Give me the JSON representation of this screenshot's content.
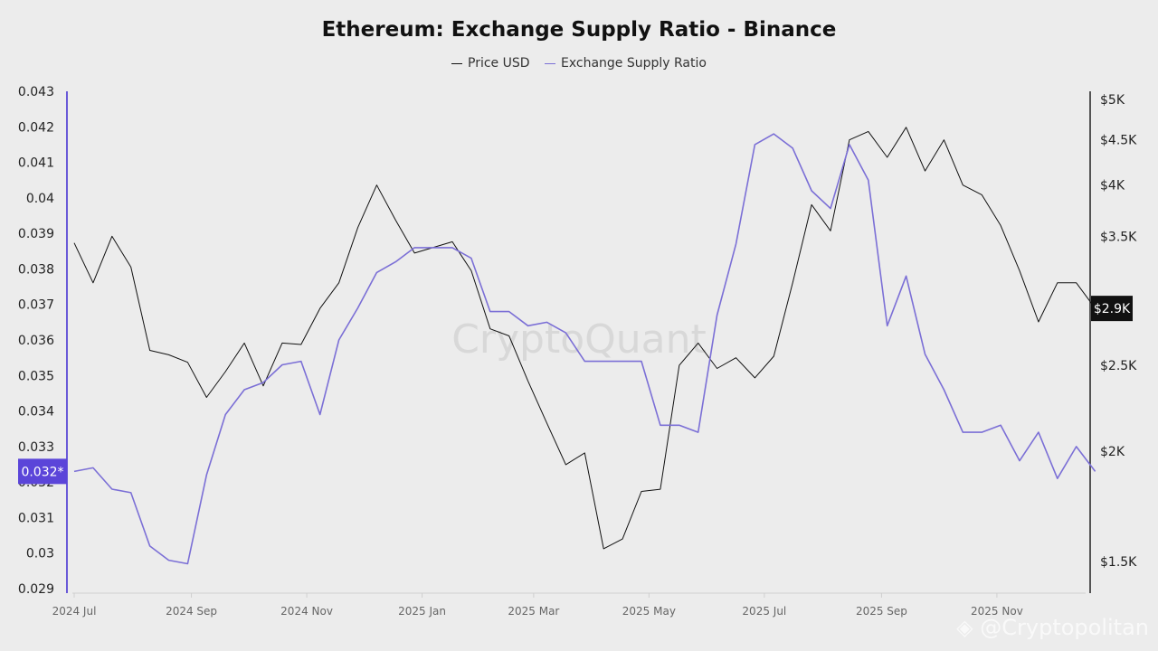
{
  "chart_data": {
    "type": "line",
    "title": "Ethereum: Exchange Supply Ratio - Binance",
    "legend_placement": "top-center",
    "x": [
      "2024-07-01",
      "2024-07-11",
      "2024-07-21",
      "2024-07-31",
      "2024-08-10",
      "2024-08-20",
      "2024-08-30",
      "2024-09-09",
      "2024-09-19",
      "2024-09-29",
      "2024-10-09",
      "2024-10-19",
      "2024-10-29",
      "2024-11-08",
      "2024-11-18",
      "2024-11-28",
      "2024-12-08",
      "2024-12-18",
      "2024-12-28",
      "2025-01-07",
      "2025-01-17",
      "2025-01-27",
      "2025-02-06",
      "2025-02-16",
      "2025-02-26",
      "2025-03-08",
      "2025-03-18",
      "2025-03-28",
      "2025-04-07",
      "2025-04-17",
      "2025-04-27",
      "2025-05-07",
      "2025-05-17",
      "2025-05-27",
      "2025-06-06",
      "2025-06-16",
      "2025-06-26",
      "2025-07-06",
      "2025-07-16",
      "2025-07-26",
      "2025-08-05",
      "2025-08-15",
      "2025-08-25",
      "2025-09-04",
      "2025-09-14",
      "2025-09-24",
      "2025-10-04",
      "2025-10-14",
      "2025-10-24",
      "2025-11-03",
      "2025-11-13",
      "2025-11-23",
      "2025-12-03",
      "2025-12-13",
      "2025-12-23"
    ],
    "series": [
      {
        "name": "Price USD",
        "axis": "right",
        "color": "#111111",
        "values": [
          3440,
          3100,
          3500,
          3230,
          2600,
          2570,
          2520,
          2300,
          2460,
          2650,
          2370,
          2650,
          2640,
          2900,
          3100,
          3580,
          4000,
          3650,
          3350,
          3400,
          3450,
          3200,
          2750,
          2700,
          2400,
          2150,
          1930,
          1990,
          1550,
          1590,
          1800,
          1810,
          2500,
          2650,
          2480,
          2550,
          2420,
          2560,
          3100,
          3800,
          3550,
          4500,
          4600,
          4300,
          4650,
          4150,
          4500,
          4000,
          3900,
          3600,
          3200,
          2800,
          3100,
          3100,
          2900
        ]
      },
      {
        "name": "Exchange Supply Ratio",
        "axis": "left",
        "color": "#7b6fd6",
        "values": [
          0.0323,
          0.0324,
          0.0318,
          0.0317,
          0.0302,
          0.0298,
          0.0297,
          0.0322,
          0.0339,
          0.0346,
          0.0348,
          0.0353,
          0.0354,
          0.0339,
          0.036,
          0.0369,
          0.0379,
          0.0382,
          0.0386,
          0.0386,
          0.0386,
          0.0383,
          0.0368,
          0.0368,
          0.0364,
          0.0365,
          0.0362,
          0.0354,
          0.0354,
          0.0354,
          0.0354,
          0.0336,
          0.0336,
          0.0334,
          0.0367,
          0.0387,
          0.0415,
          0.0418,
          0.0414,
          0.0402,
          0.0397,
          0.0415,
          0.0405,
          0.0364,
          0.0378,
          0.0356,
          0.0346,
          0.0334,
          0.0334,
          0.0336,
          0.0326,
          0.0334,
          0.0321,
          0.033,
          0.0323
        ]
      }
    ],
    "left_axis": {
      "range": [
        0.029,
        0.043
      ],
      "ticks": [
        "0.043",
        "0.042",
        "0.041",
        "0.04",
        "0.039",
        "0.038",
        "0.037",
        "0.036",
        "0.035",
        "0.034",
        "0.033",
        "0.032",
        "0.031",
        "0.03",
        "0.029"
      ],
      "current_label": "0.032*",
      "current_value": 0.0323,
      "color": "#5b45d9"
    },
    "right_axis": {
      "scale": "log",
      "range": [
        1400,
        5000
      ],
      "ticks": [
        {
          "v": 5000,
          "label": "$5K"
        },
        {
          "v": 4500,
          "label": "$4.5K"
        },
        {
          "v": 4000,
          "label": "$4K"
        },
        {
          "v": 3500,
          "label": "$3.5K"
        },
        {
          "v": 2500,
          "label": "$2.5K"
        },
        {
          "v": 2000,
          "label": "$2K"
        },
        {
          "v": 1500,
          "label": "$1.5K"
        }
      ],
      "current_label": "$2.9K",
      "current_value": 2900
    },
    "x_ticks": [
      {
        "d": "2024-07-01",
        "label": "2024 Jul"
      },
      {
        "d": "2024-09-01",
        "label": "2024 Sep"
      },
      {
        "d": "2024-11-01",
        "label": "2024 Nov"
      },
      {
        "d": "2025-01-01",
        "label": "2025 Jan"
      },
      {
        "d": "2025-03-01",
        "label": "2025 Mar"
      },
      {
        "d": "2025-05-01",
        "label": "2025 May"
      },
      {
        "d": "2025-07-01",
        "label": "2025 Jul"
      },
      {
        "d": "2025-09-01",
        "label": "2025 Sep"
      },
      {
        "d": "2025-11-01",
        "label": "2025 Nov"
      }
    ],
    "grid": false
  },
  "watermarks": {
    "center": "CryptoQuant",
    "corner": "Cryptopolitan"
  }
}
